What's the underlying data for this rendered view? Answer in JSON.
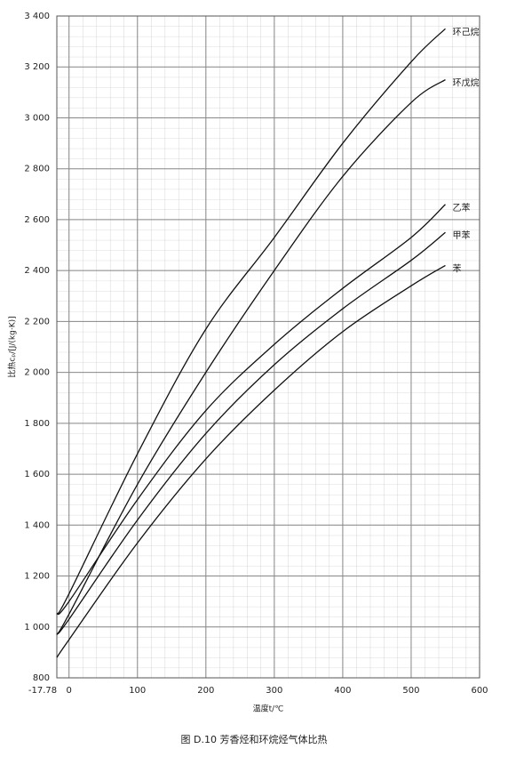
{
  "chart_data": {
    "type": "line",
    "x_label": "温度t/℃",
    "y_label": "比热cₚ/[J/(kg·K)]",
    "caption": "图 D.10   芳香烃和环烷烃气体比热",
    "x": [
      -17.78,
      0,
      100,
      200,
      300,
      400,
      500,
      550
    ],
    "series": [
      {
        "name": "环己烷",
        "color": "#111111",
        "values": [
          1050,
          1130,
          1680,
          2170,
          2530,
          2900,
          3220,
          3350
        ]
      },
      {
        "name": "环戊烷",
        "color": "#111111",
        "values": [
          970,
          1050,
          1560,
          2000,
          2400,
          2770,
          3060,
          3150
        ]
      },
      {
        "name": "乙苯",
        "color": "#111111",
        "values": [
          1050,
          1100,
          1500,
          1850,
          2110,
          2330,
          2530,
          2660
        ]
      },
      {
        "name": "甲苯",
        "color": "#111111",
        "values": [
          970,
          1030,
          1420,
          1760,
          2030,
          2250,
          2440,
          2550
        ]
      },
      {
        "name": "苯",
        "color": "#111111",
        "values": [
          880,
          950,
          1330,
          1660,
          1930,
          2160,
          2340,
          2420
        ]
      }
    ],
    "xlim": [
      -17.78,
      600
    ],
    "xticks": [
      -17.78,
      0,
      100,
      200,
      300,
      400,
      500,
      600
    ],
    "ylim": [
      800,
      3400
    ],
    "yticks": [
      800,
      {
        "value": 1000,
        "label": "1 000"
      },
      {
        "value": 1200,
        "label": "1 200"
      },
      {
        "value": 1400,
        "label": "1 400"
      },
      {
        "value": 1600,
        "label": "1 600"
      },
      {
        "value": 1800,
        "label": "1 800"
      },
      {
        "value": 2000,
        "label": "2 000"
      },
      {
        "value": 2200,
        "label": "2 200"
      },
      {
        "value": 2400,
        "label": "2 400"
      },
      {
        "value": 2600,
        "label": "2 600"
      },
      {
        "value": 2800,
        "label": "2 800"
      },
      {
        "value": 3000,
        "label": "3 000"
      },
      {
        "value": 3200,
        "label": "3 200"
      },
      {
        "value": 3400,
        "label": "3 400"
      }
    ],
    "grid": true
  }
}
